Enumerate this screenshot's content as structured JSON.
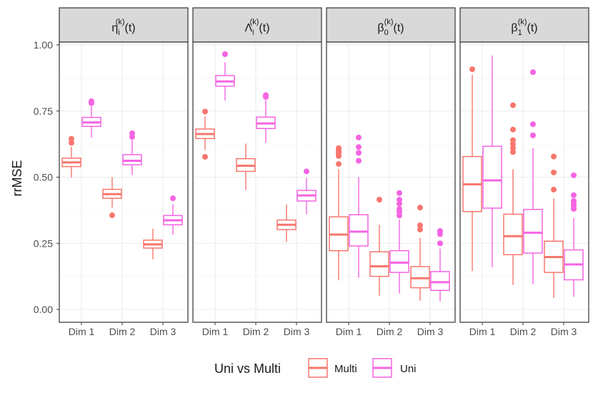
{
  "chart_data": {
    "type": "boxplot",
    "ylabel": "rrMSE",
    "ylim": [
      0,
      1.05
    ],
    "yticks": [
      "0.00",
      "0.25",
      "0.50",
      "0.75",
      "1.00"
    ],
    "ytick_values": [
      0,
      0.25,
      0.5,
      0.75,
      1.0
    ],
    "categories": [
      "Dim 1",
      "Dim 2",
      "Dim 3"
    ],
    "legend": {
      "title": "Uni vs Multi",
      "entries": [
        {
          "name": "Multi",
          "color": "#F8766D"
        },
        {
          "name": "Uni",
          "color": "#F564E3"
        }
      ]
    },
    "panels": [
      {
        "title": {
          "base": "η",
          "sub": "i",
          "sup": "(k)",
          "arg": "(t)"
        },
        "boxes": [
          {
            "category": "Dim 1",
            "series": "Multi",
            "q1": 0.54,
            "median": 0.556,
            "q3": 0.572,
            "whisker_low": 0.498,
            "whisker_high": 0.615,
            "outliers": [
              0.63,
              0.645
            ]
          },
          {
            "category": "Dim 1",
            "series": "Uni",
            "q1": 0.692,
            "median": 0.707,
            "q3": 0.726,
            "whisker_low": 0.65,
            "whisker_high": 0.768,
            "outliers": [
              0.78,
              0.787
            ]
          },
          {
            "category": "Dim 2",
            "series": "Multi",
            "q1": 0.42,
            "median": 0.436,
            "q3": 0.454,
            "whisker_low": 0.385,
            "whisker_high": 0.5,
            "outliers": [
              0.356
            ]
          },
          {
            "category": "Dim 2",
            "series": "Uni",
            "q1": 0.547,
            "median": 0.562,
            "q3": 0.585,
            "whisker_low": 0.508,
            "whisker_high": 0.64,
            "outliers": [
              0.652,
              0.666
            ]
          },
          {
            "category": "Dim 3",
            "series": "Multi",
            "q1": 0.232,
            "median": 0.246,
            "q3": 0.262,
            "whisker_low": 0.19,
            "whisker_high": 0.305,
            "outliers": []
          },
          {
            "category": "Dim 3",
            "series": "Uni",
            "q1": 0.32,
            "median": 0.337,
            "q3": 0.355,
            "whisker_low": 0.283,
            "whisker_high": 0.398,
            "outliers": [
              0.42
            ]
          }
        ]
      },
      {
        "title": {
          "base": "Λ",
          "sub": "i",
          "sup": "(k)",
          "arg": "(t)"
        },
        "boxes": [
          {
            "category": "Dim 1",
            "series": "Multi",
            "q1": 0.646,
            "median": 0.663,
            "q3": 0.682,
            "whisker_low": 0.603,
            "whisker_high": 0.73,
            "outliers": [
              0.577,
              0.748
            ]
          },
          {
            "category": "Dim 1",
            "series": "Uni",
            "q1": 0.844,
            "median": 0.862,
            "q3": 0.884,
            "whisker_low": 0.79,
            "whisker_high": 0.935,
            "outliers": [
              0.965
            ]
          },
          {
            "category": "Dim 2",
            "series": "Multi",
            "q1": 0.522,
            "median": 0.543,
            "q3": 0.57,
            "whisker_low": 0.452,
            "whisker_high": 0.627,
            "outliers": []
          },
          {
            "category": "Dim 2",
            "series": "Uni",
            "q1": 0.684,
            "median": 0.703,
            "q3": 0.727,
            "whisker_low": 0.63,
            "whisker_high": 0.79,
            "outliers": [
              0.803,
              0.81
            ]
          },
          {
            "category": "Dim 3",
            "series": "Multi",
            "q1": 0.302,
            "median": 0.32,
            "q3": 0.338,
            "whisker_low": 0.255,
            "whisker_high": 0.397,
            "outliers": []
          },
          {
            "category": "Dim 3",
            "series": "Uni",
            "q1": 0.41,
            "median": 0.431,
            "q3": 0.45,
            "whisker_low": 0.36,
            "whisker_high": 0.497,
            "outliers": [
              0.522
            ]
          }
        ]
      },
      {
        "title": {
          "base": "β",
          "sub": "0",
          "sup": "(k)",
          "arg": "(t)"
        },
        "boxes": [
          {
            "category": "Dim 1",
            "series": "Multi",
            "q1": 0.222,
            "median": 0.283,
            "q3": 0.35,
            "whisker_low": 0.11,
            "whisker_high": 0.53,
            "outliers": [
              0.55,
              0.58,
              0.59,
              0.597,
              0.603,
              0.61
            ]
          },
          {
            "category": "Dim 1",
            "series": "Uni",
            "q1": 0.24,
            "median": 0.294,
            "q3": 0.358,
            "whisker_low": 0.12,
            "whisker_high": 0.5,
            "outliers": [
              0.562,
              0.592,
              0.614,
              0.65
            ]
          },
          {
            "category": "Dim 2",
            "series": "Multi",
            "q1": 0.125,
            "median": 0.163,
            "q3": 0.218,
            "whisker_low": 0.052,
            "whisker_high": 0.32,
            "outliers": [
              0.415
            ]
          },
          {
            "category": "Dim 2",
            "series": "Uni",
            "q1": 0.14,
            "median": 0.177,
            "q3": 0.222,
            "whisker_low": 0.06,
            "whisker_high": 0.34,
            "outliers": [
              0.355,
              0.37,
              0.38,
              0.4,
              0.415,
              0.44
            ]
          },
          {
            "category": "Dim 3",
            "series": "Multi",
            "q1": 0.082,
            "median": 0.118,
            "q3": 0.162,
            "whisker_low": 0.033,
            "whisker_high": 0.27,
            "outliers": [
              0.302,
              0.318,
              0.385
            ]
          },
          {
            "category": "Dim 3",
            "series": "Uni",
            "q1": 0.072,
            "median": 0.103,
            "q3": 0.143,
            "whisker_low": 0.03,
            "whisker_high": 0.23,
            "outliers": [
              0.25,
              0.285,
              0.297
            ]
          }
        ]
      },
      {
        "title": {
          "base": "β",
          "sub": "1",
          "sup": "(k)",
          "arg": "(t)"
        },
        "boxes": [
          {
            "category": "Dim 1",
            "series": "Multi",
            "q1": 0.37,
            "median": 0.473,
            "q3": 0.578,
            "whisker_low": 0.145,
            "whisker_high": 0.887,
            "outliers": [
              0.908
            ]
          },
          {
            "category": "Dim 1",
            "series": "Uni",
            "q1": 0.383,
            "median": 0.488,
            "q3": 0.617,
            "whisker_low": 0.16,
            "whisker_high": 0.96,
            "outliers": []
          },
          {
            "category": "Dim 2",
            "series": "Multi",
            "q1": 0.207,
            "median": 0.277,
            "q3": 0.36,
            "whisker_low": 0.093,
            "whisker_high": 0.53,
            "outliers": [
              0.595,
              0.61,
              0.625,
              0.64,
              0.68,
              0.772
            ]
          },
          {
            "category": "Dim 2",
            "series": "Uni",
            "q1": 0.213,
            "median": 0.29,
            "q3": 0.378,
            "whisker_low": 0.095,
            "whisker_high": 0.61,
            "outliers": [
              0.658,
              0.7,
              0.897
            ]
          },
          {
            "category": "Dim 3",
            "series": "Multi",
            "q1": 0.14,
            "median": 0.198,
            "q3": 0.258,
            "whisker_low": 0.043,
            "whisker_high": 0.42,
            "outliers": [
              0.453,
              0.518,
              0.578
            ]
          },
          {
            "category": "Dim 3",
            "series": "Uni",
            "q1": 0.112,
            "median": 0.17,
            "q3": 0.225,
            "whisker_low": 0.048,
            "whisker_high": 0.345,
            "outliers": [
              0.38,
              0.392,
              0.4,
              0.41,
              0.432,
              0.507
            ]
          }
        ]
      }
    ]
  }
}
